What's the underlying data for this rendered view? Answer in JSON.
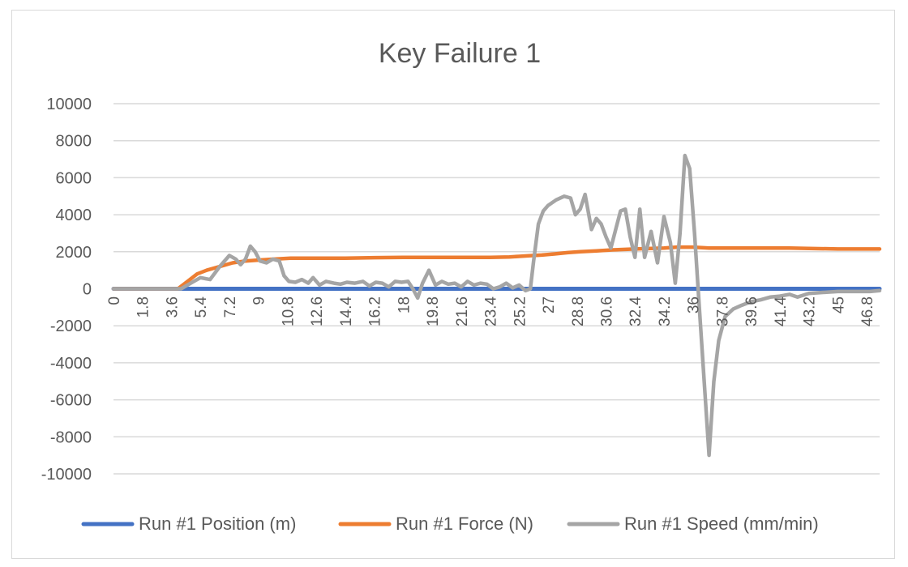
{
  "chart_data": {
    "type": "line",
    "title": "Key Failure 1",
    "xlabel": "",
    "ylabel": "",
    "ylim": [
      -10000,
      10000
    ],
    "yticks": [
      10000,
      8000,
      6000,
      4000,
      2000,
      0,
      -2000,
      -4000,
      -6000,
      -8000,
      -10000
    ],
    "xlim": [
      0,
      47.6
    ],
    "xticks": [
      "0",
      "1.8",
      "3.6",
      "5.4",
      "7.2",
      "9",
      "10.8",
      "12.6",
      "14.4",
      "16.2",
      "18",
      "19.8",
      "21.6",
      "23.4",
      "25.2",
      "27",
      "28.8",
      "30.6",
      "32.4",
      "34.2",
      "36",
      "37.8",
      "39.6",
      "41.4",
      "43.2",
      "45",
      "46.8"
    ],
    "grid": "horizontal",
    "legend": "bottom",
    "series": [
      {
        "name": "Run #1 Position (m)",
        "color": "#4472c4",
        "points": [
          [
            0,
            0
          ],
          [
            47.6,
            0
          ]
        ]
      },
      {
        "name": "Run #1 Force (N)",
        "color": "#ed7d31",
        "points": [
          [
            0,
            0
          ],
          [
            4.0,
            0
          ],
          [
            4.6,
            400
          ],
          [
            5.2,
            800
          ],
          [
            5.8,
            1000
          ],
          [
            6.6,
            1200
          ],
          [
            7.4,
            1400
          ],
          [
            8.2,
            1500
          ],
          [
            9.0,
            1550
          ],
          [
            10.0,
            1600
          ],
          [
            11.0,
            1650
          ],
          [
            12.6,
            1650
          ],
          [
            14.4,
            1650
          ],
          [
            16.2,
            1680
          ],
          [
            18.0,
            1700
          ],
          [
            19.8,
            1700
          ],
          [
            21.6,
            1700
          ],
          [
            23.4,
            1700
          ],
          [
            24.6,
            1720
          ],
          [
            25.2,
            1750
          ],
          [
            25.8,
            1780
          ],
          [
            26.6,
            1820
          ],
          [
            27.4,
            1880
          ],
          [
            28.2,
            1950
          ],
          [
            29.0,
            2000
          ],
          [
            30.0,
            2050
          ],
          [
            31.0,
            2100
          ],
          [
            32.4,
            2150
          ],
          [
            34.2,
            2200
          ],
          [
            35.0,
            2250
          ],
          [
            36.0,
            2250
          ],
          [
            37.0,
            2200
          ],
          [
            38.0,
            2200
          ],
          [
            40.0,
            2200
          ],
          [
            42.0,
            2200
          ],
          [
            43.2,
            2180
          ],
          [
            45.0,
            2150
          ],
          [
            47.6,
            2150
          ]
        ]
      },
      {
        "name": "Run #1 Speed (mm/min)",
        "color": "#a5a5a5",
        "points": [
          [
            0,
            0
          ],
          [
            4.2,
            0
          ],
          [
            4.8,
            300
          ],
          [
            5.4,
            600
          ],
          [
            6.0,
            500
          ],
          [
            6.6,
            1200
          ],
          [
            7.2,
            1800
          ],
          [
            7.6,
            1600
          ],
          [
            7.9,
            1300
          ],
          [
            8.2,
            1600
          ],
          [
            8.5,
            2300
          ],
          [
            8.8,
            2000
          ],
          [
            9.1,
            1500
          ],
          [
            9.5,
            1400
          ],
          [
            9.9,
            1600
          ],
          [
            10.3,
            1500
          ],
          [
            10.6,
            700
          ],
          [
            10.9,
            400
          ],
          [
            11.3,
            350
          ],
          [
            11.7,
            500
          ],
          [
            12.1,
            300
          ],
          [
            12.4,
            600
          ],
          [
            12.8,
            200
          ],
          [
            13.2,
            400
          ],
          [
            13.7,
            300
          ],
          [
            14.1,
            250
          ],
          [
            14.5,
            350
          ],
          [
            15.0,
            300
          ],
          [
            15.5,
            400
          ],
          [
            15.9,
            150
          ],
          [
            16.3,
            350
          ],
          [
            16.7,
            300
          ],
          [
            17.1,
            100
          ],
          [
            17.5,
            400
          ],
          [
            17.9,
            350
          ],
          [
            18.3,
            400
          ],
          [
            18.6,
            0
          ],
          [
            18.9,
            -500
          ],
          [
            19.2,
            300
          ],
          [
            19.6,
            1000
          ],
          [
            20.0,
            200
          ],
          [
            20.4,
            400
          ],
          [
            20.8,
            250
          ],
          [
            21.2,
            300
          ],
          [
            21.6,
            100
          ],
          [
            22.0,
            400
          ],
          [
            22.4,
            200
          ],
          [
            22.8,
            300
          ],
          [
            23.2,
            250
          ],
          [
            23.6,
            0
          ],
          [
            24.0,
            100
          ],
          [
            24.4,
            300
          ],
          [
            24.8,
            50
          ],
          [
            25.2,
            200
          ],
          [
            25.6,
            -100
          ],
          [
            25.9,
            0
          ],
          [
            26.1,
            1500
          ],
          [
            26.4,
            3500
          ],
          [
            26.7,
            4200
          ],
          [
            27.0,
            4500
          ],
          [
            27.5,
            4800
          ],
          [
            28.0,
            5000
          ],
          [
            28.4,
            4900
          ],
          [
            28.7,
            4000
          ],
          [
            29.0,
            4300
          ],
          [
            29.3,
            5100
          ],
          [
            29.7,
            3200
          ],
          [
            30.0,
            3800
          ],
          [
            30.3,
            3500
          ],
          [
            30.6,
            2800
          ],
          [
            30.9,
            2200
          ],
          [
            31.2,
            3200
          ],
          [
            31.5,
            4200
          ],
          [
            31.8,
            4300
          ],
          [
            32.1,
            2800
          ],
          [
            32.4,
            1700
          ],
          [
            32.7,
            4300
          ],
          [
            33.0,
            1700
          ],
          [
            33.4,
            3100
          ],
          [
            33.8,
            1400
          ],
          [
            34.2,
            3900
          ],
          [
            34.6,
            2500
          ],
          [
            34.9,
            300
          ],
          [
            35.2,
            3000
          ],
          [
            35.5,
            7200
          ],
          [
            35.8,
            6500
          ],
          [
            36.1,
            3000
          ],
          [
            36.4,
            -1000
          ],
          [
            36.7,
            -5000
          ],
          [
            37.0,
            -9000
          ],
          [
            37.3,
            -5000
          ],
          [
            37.6,
            -2800
          ],
          [
            38.0,
            -1500
          ],
          [
            38.5,
            -1100
          ],
          [
            39.0,
            -900
          ],
          [
            39.6,
            -700
          ],
          [
            40.2,
            -600
          ],
          [
            40.8,
            -450
          ],
          [
            41.4,
            -400
          ],
          [
            42.0,
            -300
          ],
          [
            42.5,
            -450
          ],
          [
            43.2,
            -250
          ],
          [
            44.0,
            -200
          ],
          [
            45.0,
            -150
          ],
          [
            46.0,
            -150
          ],
          [
            47.0,
            -150
          ],
          [
            47.6,
            -100
          ]
        ]
      }
    ]
  }
}
